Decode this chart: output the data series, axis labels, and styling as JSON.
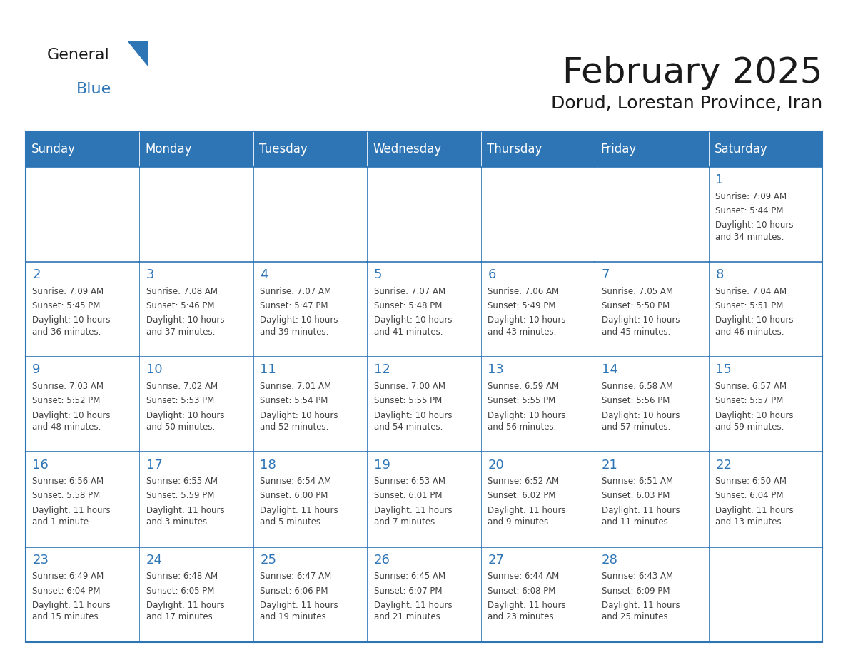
{
  "title": "February 2025",
  "subtitle": "Dorud, Lorestan Province, Iran",
  "header_bg": "#2E75B6",
  "header_text_color": "#FFFFFF",
  "cell_border_color": "#2E75B6",
  "day_number_color": "#2E75B6",
  "info_text_color": "#404040",
  "bg_color": "#FFFFFF",
  "days_of_week": [
    "Sunday",
    "Monday",
    "Tuesday",
    "Wednesday",
    "Thursday",
    "Friday",
    "Saturday"
  ],
  "calendar_data": [
    [
      null,
      null,
      null,
      null,
      null,
      null,
      {
        "day": 1,
        "sunrise": "7:09 AM",
        "sunset": "5:44 PM",
        "daylight": "10 hours and 34 minutes."
      }
    ],
    [
      {
        "day": 2,
        "sunrise": "7:09 AM",
        "sunset": "5:45 PM",
        "daylight": "10 hours and 36 minutes."
      },
      {
        "day": 3,
        "sunrise": "7:08 AM",
        "sunset": "5:46 PM",
        "daylight": "10 hours and 37 minutes."
      },
      {
        "day": 4,
        "sunrise": "7:07 AM",
        "sunset": "5:47 PM",
        "daylight": "10 hours and 39 minutes."
      },
      {
        "day": 5,
        "sunrise": "7:07 AM",
        "sunset": "5:48 PM",
        "daylight": "10 hours and 41 minutes."
      },
      {
        "day": 6,
        "sunrise": "7:06 AM",
        "sunset": "5:49 PM",
        "daylight": "10 hours and 43 minutes."
      },
      {
        "day": 7,
        "sunrise": "7:05 AM",
        "sunset": "5:50 PM",
        "daylight": "10 hours and 45 minutes."
      },
      {
        "day": 8,
        "sunrise": "7:04 AM",
        "sunset": "5:51 PM",
        "daylight": "10 hours and 46 minutes."
      }
    ],
    [
      {
        "day": 9,
        "sunrise": "7:03 AM",
        "sunset": "5:52 PM",
        "daylight": "10 hours and 48 minutes."
      },
      {
        "day": 10,
        "sunrise": "7:02 AM",
        "sunset": "5:53 PM",
        "daylight": "10 hours and 50 minutes."
      },
      {
        "day": 11,
        "sunrise": "7:01 AM",
        "sunset": "5:54 PM",
        "daylight": "10 hours and 52 minutes."
      },
      {
        "day": 12,
        "sunrise": "7:00 AM",
        "sunset": "5:55 PM",
        "daylight": "10 hours and 54 minutes."
      },
      {
        "day": 13,
        "sunrise": "6:59 AM",
        "sunset": "5:55 PM",
        "daylight": "10 hours and 56 minutes."
      },
      {
        "day": 14,
        "sunrise": "6:58 AM",
        "sunset": "5:56 PM",
        "daylight": "10 hours and 57 minutes."
      },
      {
        "day": 15,
        "sunrise": "6:57 AM",
        "sunset": "5:57 PM",
        "daylight": "10 hours and 59 minutes."
      }
    ],
    [
      {
        "day": 16,
        "sunrise": "6:56 AM",
        "sunset": "5:58 PM",
        "daylight": "11 hours and 1 minute."
      },
      {
        "day": 17,
        "sunrise": "6:55 AM",
        "sunset": "5:59 PM",
        "daylight": "11 hours and 3 minutes."
      },
      {
        "day": 18,
        "sunrise": "6:54 AM",
        "sunset": "6:00 PM",
        "daylight": "11 hours and 5 minutes."
      },
      {
        "day": 19,
        "sunrise": "6:53 AM",
        "sunset": "6:01 PM",
        "daylight": "11 hours and 7 minutes."
      },
      {
        "day": 20,
        "sunrise": "6:52 AM",
        "sunset": "6:02 PM",
        "daylight": "11 hours and 9 minutes."
      },
      {
        "day": 21,
        "sunrise": "6:51 AM",
        "sunset": "6:03 PM",
        "daylight": "11 hours and 11 minutes."
      },
      {
        "day": 22,
        "sunrise": "6:50 AM",
        "sunset": "6:04 PM",
        "daylight": "11 hours and 13 minutes."
      }
    ],
    [
      {
        "day": 23,
        "sunrise": "6:49 AM",
        "sunset": "6:04 PM",
        "daylight": "11 hours and 15 minutes."
      },
      {
        "day": 24,
        "sunrise": "6:48 AM",
        "sunset": "6:05 PM",
        "daylight": "11 hours and 17 minutes."
      },
      {
        "day": 25,
        "sunrise": "6:47 AM",
        "sunset": "6:06 PM",
        "daylight": "11 hours and 19 minutes."
      },
      {
        "day": 26,
        "sunrise": "6:45 AM",
        "sunset": "6:07 PM",
        "daylight": "11 hours and 21 minutes."
      },
      {
        "day": 27,
        "sunrise": "6:44 AM",
        "sunset": "6:08 PM",
        "daylight": "11 hours and 23 minutes."
      },
      {
        "day": 28,
        "sunrise": "6:43 AM",
        "sunset": "6:09 PM",
        "daylight": "11 hours and 25 minutes."
      },
      null
    ]
  ],
  "logo_text_general": "General",
  "logo_text_blue": "Blue",
  "logo_triangle_color": "#2E75B6",
  "logo_general_color": "#1a1a1a",
  "logo_blue_color": "#2E75B6"
}
